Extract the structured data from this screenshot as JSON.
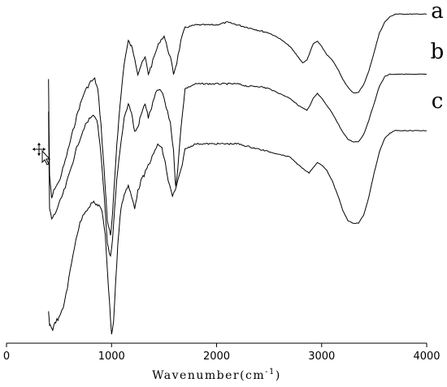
{
  "chart_data": {
    "type": "line",
    "title": "",
    "xlabel": "Wavenumber(cm-1)",
    "xlabel_parts": {
      "text": "Wavenumber(cm",
      "sup": "-1",
      "close": ")"
    },
    "ylabel": "",
    "xlim": [
      0,
      4000
    ],
    "ylim": [
      0,
      100
    ],
    "x_ticks": [
      0,
      1000,
      2000,
      3000,
      4000
    ],
    "x_tick_labels": [
      "0",
      "1000",
      "2000",
      "3000",
      "4000"
    ],
    "grid": false,
    "legend": "none",
    "series": [
      {
        "name": "a",
        "x": [
          400,
          410,
          430,
          460,
          500,
          560,
          620,
          680,
          740,
          800,
          840,
          870,
          900,
          930,
          960,
          990,
          1010,
          1030,
          1050,
          1080,
          1120,
          1160,
          1190,
          1220,
          1250,
          1280,
          1320,
          1350,
          1380,
          1420,
          1460,
          1500,
          1520,
          1560,
          1590,
          1620,
          1660,
          1700,
          1800,
          1900,
          2000,
          2100,
          2200,
          2300,
          2400,
          2500,
          2600,
          2700,
          2780,
          2820,
          2860,
          2890,
          2920,
          2960,
          3000,
          3050,
          3100,
          3150,
          3200,
          3250,
          3300,
          3350,
          3400,
          3450,
          3500,
          3550,
          3600,
          3650,
          3700,
          3800,
          3900,
          4000
        ],
        "y": [
          72,
          36,
          28,
          32,
          34,
          42,
          51,
          60,
          67,
          71,
          72,
          68,
          55,
          38,
          20,
          14,
          22,
          35,
          48,
          62,
          78,
          86,
          84,
          80,
          74,
          77,
          80,
          74,
          77,
          82,
          86,
          88,
          85,
          80,
          74,
          78,
          86,
          91,
          92,
          92,
          92,
          93,
          92,
          91,
          90,
          89,
          87,
          84,
          80,
          78,
          79,
          82,
          85,
          86,
          84,
          81,
          79,
          76,
          72,
          69,
          67,
          67,
          70,
          75,
          82,
          89,
          93,
          95,
          96,
          96,
          96,
          96
        ]
      },
      {
        "name": "b",
        "x": [
          400,
          410,
          430,
          460,
          500,
          560,
          620,
          680,
          740,
          800,
          840,
          870,
          900,
          930,
          960,
          990,
          1010,
          1030,
          1050,
          1080,
          1120,
          1160,
          1190,
          1220,
          1250,
          1280,
          1320,
          1350,
          1380,
          1420,
          1460,
          1500,
          1520,
          1560,
          1590,
          1610,
          1630,
          1660,
          1700,
          1800,
          1900,
          2000,
          2100,
          2200,
          2300,
          2400,
          2500,
          2600,
          2700,
          2780,
          2820,
          2860,
          2890,
          2920,
          2960,
          3000,
          3050,
          3100,
          3150,
          3200,
          3250,
          3300,
          3350,
          3400,
          3450,
          3500,
          3550,
          3600,
          3650,
          3700,
          3800,
          3900,
          4000
        ],
        "y": [
          68,
          28,
          24,
          26,
          30,
          37,
          46,
          55,
          62,
          66,
          67,
          63,
          50,
          33,
          14,
          8,
          15,
          28,
          40,
          52,
          66,
          72,
          68,
          60,
          62,
          67,
          72,
          66,
          70,
          76,
          78,
          74,
          70,
          64,
          52,
          38,
          44,
          62,
          78,
          80,
          80,
          80,
          80,
          80,
          79,
          79,
          78,
          76,
          74,
          71,
          70,
          69,
          71,
          74,
          76,
          74,
          71,
          68,
          64,
          60,
          57,
          56,
          56,
          59,
          65,
          72,
          79,
          83,
          84,
          84,
          84,
          84,
          84
        ]
      },
      {
        "name": "c",
        "x": [
          400,
          410,
          420,
          440,
          470,
          500,
          540,
          580,
          620,
          660,
          700,
          740,
          780,
          820,
          850,
          880,
          910,
          940,
          970,
          1000,
          1020,
          1040,
          1060,
          1080,
          1100,
          1130,
          1160,
          1190,
          1220,
          1250,
          1280,
          1310,
          1350,
          1400,
          1440,
          1480,
          1510,
          1540,
          1580,
          1620,
          1660,
          1700,
          1800,
          1900,
          2000,
          2100,
          2200,
          2300,
          2400,
          2500,
          2600,
          2700,
          2780,
          2840,
          2880,
          2920,
          2960,
          3000,
          3050,
          3100,
          3150,
          3200,
          3250,
          3300,
          3350,
          3400,
          3450,
          3500,
          3550,
          3600,
          3650,
          3700,
          3800,
          3900,
          4000
        ],
        "y": [
          8,
          4,
          3,
          2,
          5,
          6,
          10,
          18,
          27,
          36,
          42,
          46,
          48,
          50,
          49,
          49,
          46,
          38,
          18,
          0,
          5,
          20,
          34,
          44,
          50,
          54,
          56,
          52,
          48,
          54,
          58,
          60,
          64,
          68,
          72,
          70,
          65,
          58,
          52,
          56,
          62,
          70,
          72,
          72,
          72,
          72,
          72,
          71,
          70,
          69,
          68,
          67,
          64,
          62,
          61,
          63,
          65,
          64,
          62,
          58,
          53,
          47,
          43,
          42,
          42,
          45,
          52,
          61,
          69,
          74,
          76,
          77,
          77,
          77,
          77
        ]
      }
    ]
  },
  "cursor_icon": "move-cursor-icon"
}
